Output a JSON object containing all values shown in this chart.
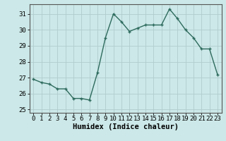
{
  "x": [
    0,
    1,
    2,
    3,
    4,
    5,
    6,
    7,
    8,
    9,
    10,
    11,
    12,
    13,
    14,
    15,
    16,
    17,
    18,
    19,
    20,
    21,
    22,
    23
  ],
  "y": [
    26.9,
    26.7,
    26.6,
    26.3,
    26.3,
    25.7,
    25.7,
    25.6,
    27.3,
    29.5,
    31.0,
    30.5,
    29.9,
    30.1,
    30.3,
    30.3,
    30.3,
    31.3,
    30.7,
    30.0,
    29.5,
    28.8,
    28.8,
    27.2
  ],
  "line_color": "#2e6b5e",
  "marker": "+",
  "marker_size": 3.5,
  "marker_lw": 1.0,
  "bg_color": "#cce8e8",
  "grid_color": "#b0cccc",
  "xlabel": "Humidex (Indice chaleur)",
  "ylim": [
    24.8,
    31.6
  ],
  "yticks": [
    25,
    26,
    27,
    28,
    29,
    30,
    31
  ],
  "xticks": [
    0,
    1,
    2,
    3,
    4,
    5,
    6,
    7,
    8,
    9,
    10,
    11,
    12,
    13,
    14,
    15,
    16,
    17,
    18,
    19,
    20,
    21,
    22,
    23
  ],
  "xlabel_fontsize": 7.5,
  "tick_fontsize": 6.5,
  "line_width": 1.0
}
